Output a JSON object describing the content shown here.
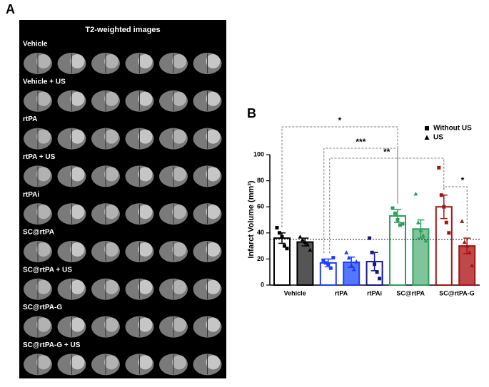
{
  "panel_a": {
    "label": "A",
    "title": "T2-weighted images",
    "rows": [
      "Vehicle",
      "Vehicle + US",
      "rtPA",
      "rtPA + US",
      "rtPAi",
      "SC@rtPA",
      "SC@rtPA + US",
      "SC@rtPA-G",
      "SC@rtPA-G + US"
    ]
  },
  "chart_data": {
    "type": "bar",
    "panel_label": "B",
    "y_label": "Infarct Volume (mm³)",
    "categories": [
      "Vehicle",
      "rtPA",
      "rtPAi",
      "SC@rtPA",
      "SC@rtPA-G"
    ],
    "series": [
      {
        "name": "Without US",
        "marker": "square",
        "colors": [
          "#000000",
          "#1f3bff",
          "#16168f",
          "#2e9e5a",
          "#a31515"
        ],
        "fill": "#ffffff",
        "values": [
          36,
          17,
          18,
          53,
          60
        ],
        "errors": [
          4,
          3,
          7,
          5,
          9
        ],
        "points": [
          [
            44,
            40,
            37,
            30,
            28
          ],
          [
            19,
            17,
            16,
            13,
            21
          ],
          [
            36,
            25,
            16,
            10,
            5
          ],
          [
            59,
            55,
            50,
            46,
            47
          ],
          [
            90,
            69,
            60,
            48,
            40
          ]
        ]
      },
      {
        "name": "US",
        "marker": "triangle",
        "colors": [
          "#000000",
          "#1f3bff",
          null,
          "#2e9e5a",
          "#a31515"
        ],
        "fills": [
          "#555555",
          "#5577ff",
          null,
          "#7fc49a",
          "#c04848"
        ],
        "values": [
          33,
          17.5,
          null,
          43,
          30
        ],
        "errors": [
          3,
          4,
          null,
          7,
          6
        ],
        "points": [
          [
            37,
            35,
            33,
            31,
            27
          ],
          [
            25,
            21,
            15,
            12,
            18
          ],
          null,
          [
            70,
            48,
            42,
            38,
            34
          ],
          [
            49,
            33,
            30,
            25,
            15
          ]
        ]
      }
    ],
    "reference_line": 35,
    "comparisons": [
      {
        "from": [
          0,
          0
        ],
        "to": [
          3,
          0
        ],
        "label": "*"
      },
      {
        "from": [
          1,
          0
        ],
        "to": [
          3,
          0
        ],
        "label": "***"
      },
      {
        "from": [
          1,
          0
        ],
        "to": [
          4,
          0
        ],
        "label": "**"
      },
      {
        "from": [
          4,
          0
        ],
        "to": [
          4,
          1
        ],
        "label": "*"
      }
    ],
    "ylim": [
      0,
      100
    ],
    "yticks": [
      0,
      20,
      40,
      60,
      80,
      100
    ],
    "legend": "top-right"
  }
}
